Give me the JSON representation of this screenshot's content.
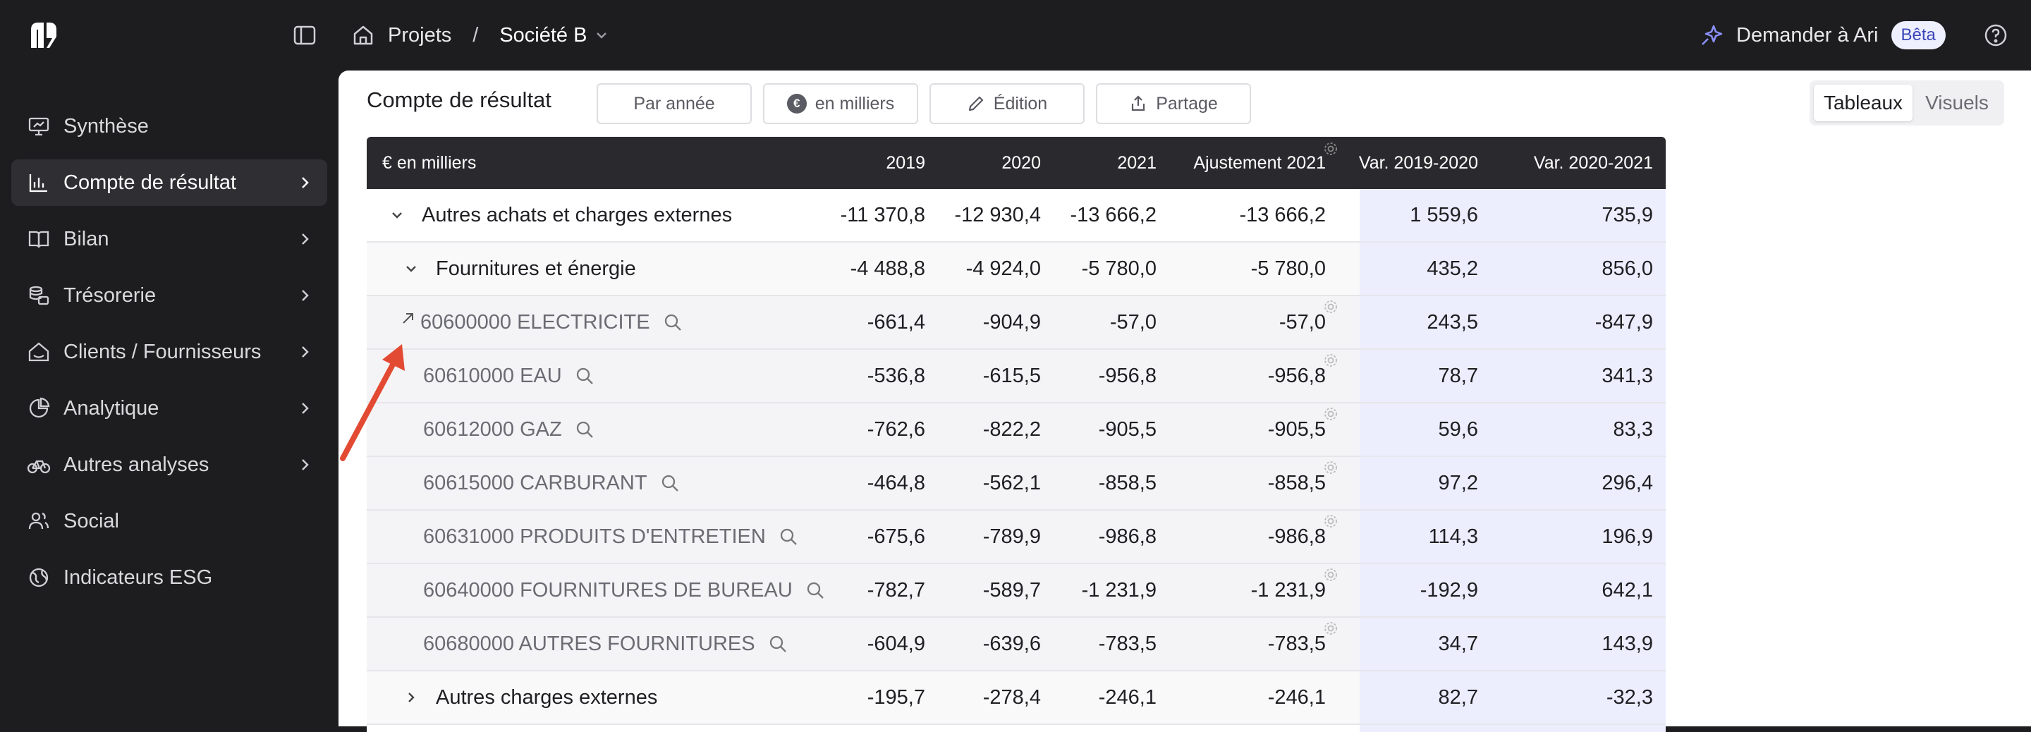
{
  "topbar": {
    "breadcrumb_projects": "Projets",
    "breadcrumb_sep": "/",
    "breadcrumb_company": "Société B",
    "ask_label": "Demander à Ari",
    "beta_label": "Bêta"
  },
  "sidebar": {
    "items": [
      {
        "label": "Synthèse"
      },
      {
        "label": "Compte de résultat"
      },
      {
        "label": "Bilan"
      },
      {
        "label": "Trésorerie"
      },
      {
        "label": "Clients / Fournisseurs"
      },
      {
        "label": "Analytique"
      },
      {
        "label": "Autres analyses"
      },
      {
        "label": "Social"
      },
      {
        "label": "Indicateurs ESG"
      }
    ]
  },
  "toolbar": {
    "title": "Compte de résultat",
    "per_year": "Par année",
    "euro_symbol": "€",
    "units": "en milliers",
    "edition": "Édition",
    "share": "Partage",
    "tab_tables": "Tableaux",
    "tab_visuals": "Visuels"
  },
  "table": {
    "headers": [
      "€ en milliers",
      "2019",
      "2020",
      "2021",
      "Ajustement 2021",
      "Var. 2019-2020",
      "Var. 2020-2021"
    ],
    "rows": [
      {
        "label": "Autres achats et charges externes",
        "values": [
          "-11 370,8",
          "-12 930,4",
          "-13 666,2",
          "-13 666,2",
          "1 559,6",
          "735,9"
        ]
      },
      {
        "label": "Fournitures et énergie",
        "values": [
          "-4 488,8",
          "-4 924,0",
          "-5 780,0",
          "-5 780,0",
          "435,2",
          "856,0"
        ]
      },
      {
        "label": "60600000 ELECTRICITE",
        "values": [
          "-661,4",
          "-904,9",
          "-57,0",
          "-57,0",
          "243,5",
          "-847,9"
        ]
      },
      {
        "label": "60610000 EAU",
        "values": [
          "-536,8",
          "-615,5",
          "-956,8",
          "-956,8",
          "78,7",
          "341,3"
        ]
      },
      {
        "label": "60612000 GAZ",
        "values": [
          "-762,6",
          "-822,2",
          "-905,5",
          "-905,5",
          "59,6",
          "83,3"
        ]
      },
      {
        "label": "60615000 CARBURANT",
        "values": [
          "-464,8",
          "-562,1",
          "-858,5",
          "-858,5",
          "97,2",
          "296,4"
        ]
      },
      {
        "label": "60631000 PRODUITS D'ENTRETIEN",
        "values": [
          "-675,6",
          "-789,9",
          "-986,8",
          "-986,8",
          "114,3",
          "196,9"
        ]
      },
      {
        "label": "60640000 FOURNITURES DE BUREAU",
        "values": [
          "-782,7",
          "-589,7",
          "-1 231,9",
          "-1 231,9",
          "-192,9",
          "642,1"
        ]
      },
      {
        "label": "60680000 AUTRES FOURNITURES",
        "values": [
          "-604,9",
          "-639,6",
          "-783,5",
          "-783,5",
          "34,7",
          "143,9"
        ]
      },
      {
        "label": "Autres charges externes",
        "values": [
          "-195,7",
          "-278,4",
          "-246,1",
          "-246,1",
          "82,7",
          "-32,3"
        ]
      }
    ]
  }
}
